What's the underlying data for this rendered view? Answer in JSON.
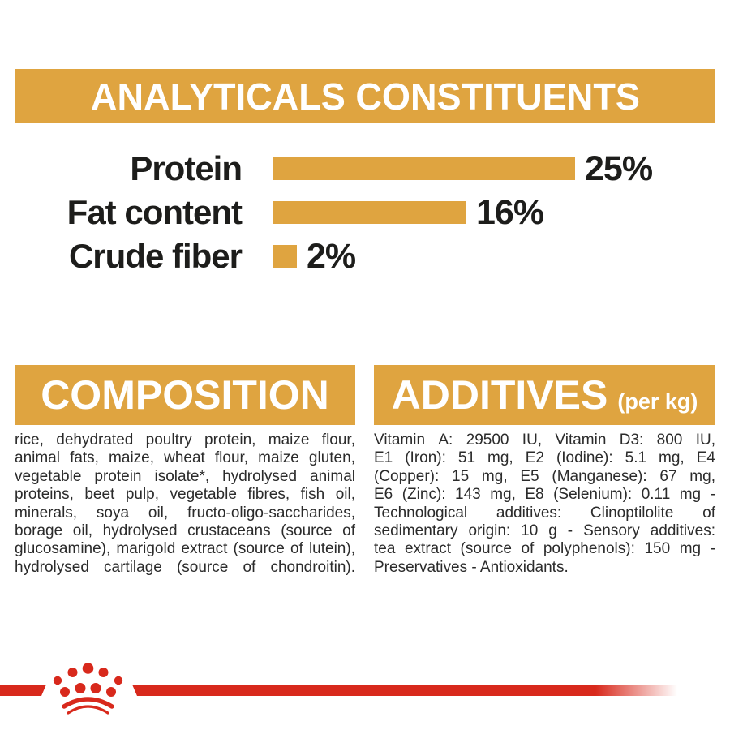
{
  "colors": {
    "gold": "#DFA440",
    "red": "#D8291C",
    "heading_text": "#FFFFFF",
    "body_text": "#2B2B2B"
  },
  "analyticals": {
    "title": "ANALYTICALS CONSTITUENTS"
  },
  "chart_data": {
    "type": "bar",
    "orientation": "horizontal",
    "categories": [
      "Protein",
      "Fat content",
      "Crude fiber"
    ],
    "values": [
      25,
      16,
      2
    ],
    "value_labels": [
      "25%",
      "16%",
      "2%"
    ],
    "unit": "%",
    "xlim": [
      0,
      25
    ],
    "bar_color": "#DFA440",
    "grid": false,
    "legend": false,
    "title": "ANALYTICALS CONSTITUENTS"
  },
  "composition": {
    "title": "COMPOSITION",
    "justify_last": true,
    "lines": [
      "rice, dehydrated poultry protein, maize flour,",
      "animal fats, maize, wheat flour, maize gluten,",
      "vegetable protein isolate*, hydrolysed animal",
      "proteins, beet pulp, vegetable fibres, fish oil,",
      "minerals, soya oil, fructo-oligo-saccharides,",
      "borage oil, hydrolysed crustaceans (source of",
      "glucosamine), marigold extract (source of lutein),",
      "hydrolysed cartilage (source of chondroitin)."
    ]
  },
  "additives": {
    "title": "ADDITIVES",
    "subtitle": "(per kg)",
    "justify_last": false,
    "lines": [
      "Vitamin A: 29500 IU, Vitamin D3: 800 IU,",
      "E1 (Iron): 51 mg, E2 (Iodine): 5.1 mg, E4",
      "(Copper): 15 mg, E5 (Manganese): 67 mg,",
      "E6 (Zinc): 143 mg, E8 (Selenium): 0.11 mg -",
      "Technological additives: Clinoptilolite of",
      "sedimentary origin: 10 g - Sensory additives:",
      "tea extract (source of polyphenols): 150 mg -",
      "Preservatives - Antioxidants."
    ]
  },
  "footer": {
    "logo": "royal-canin-crown-icon"
  }
}
